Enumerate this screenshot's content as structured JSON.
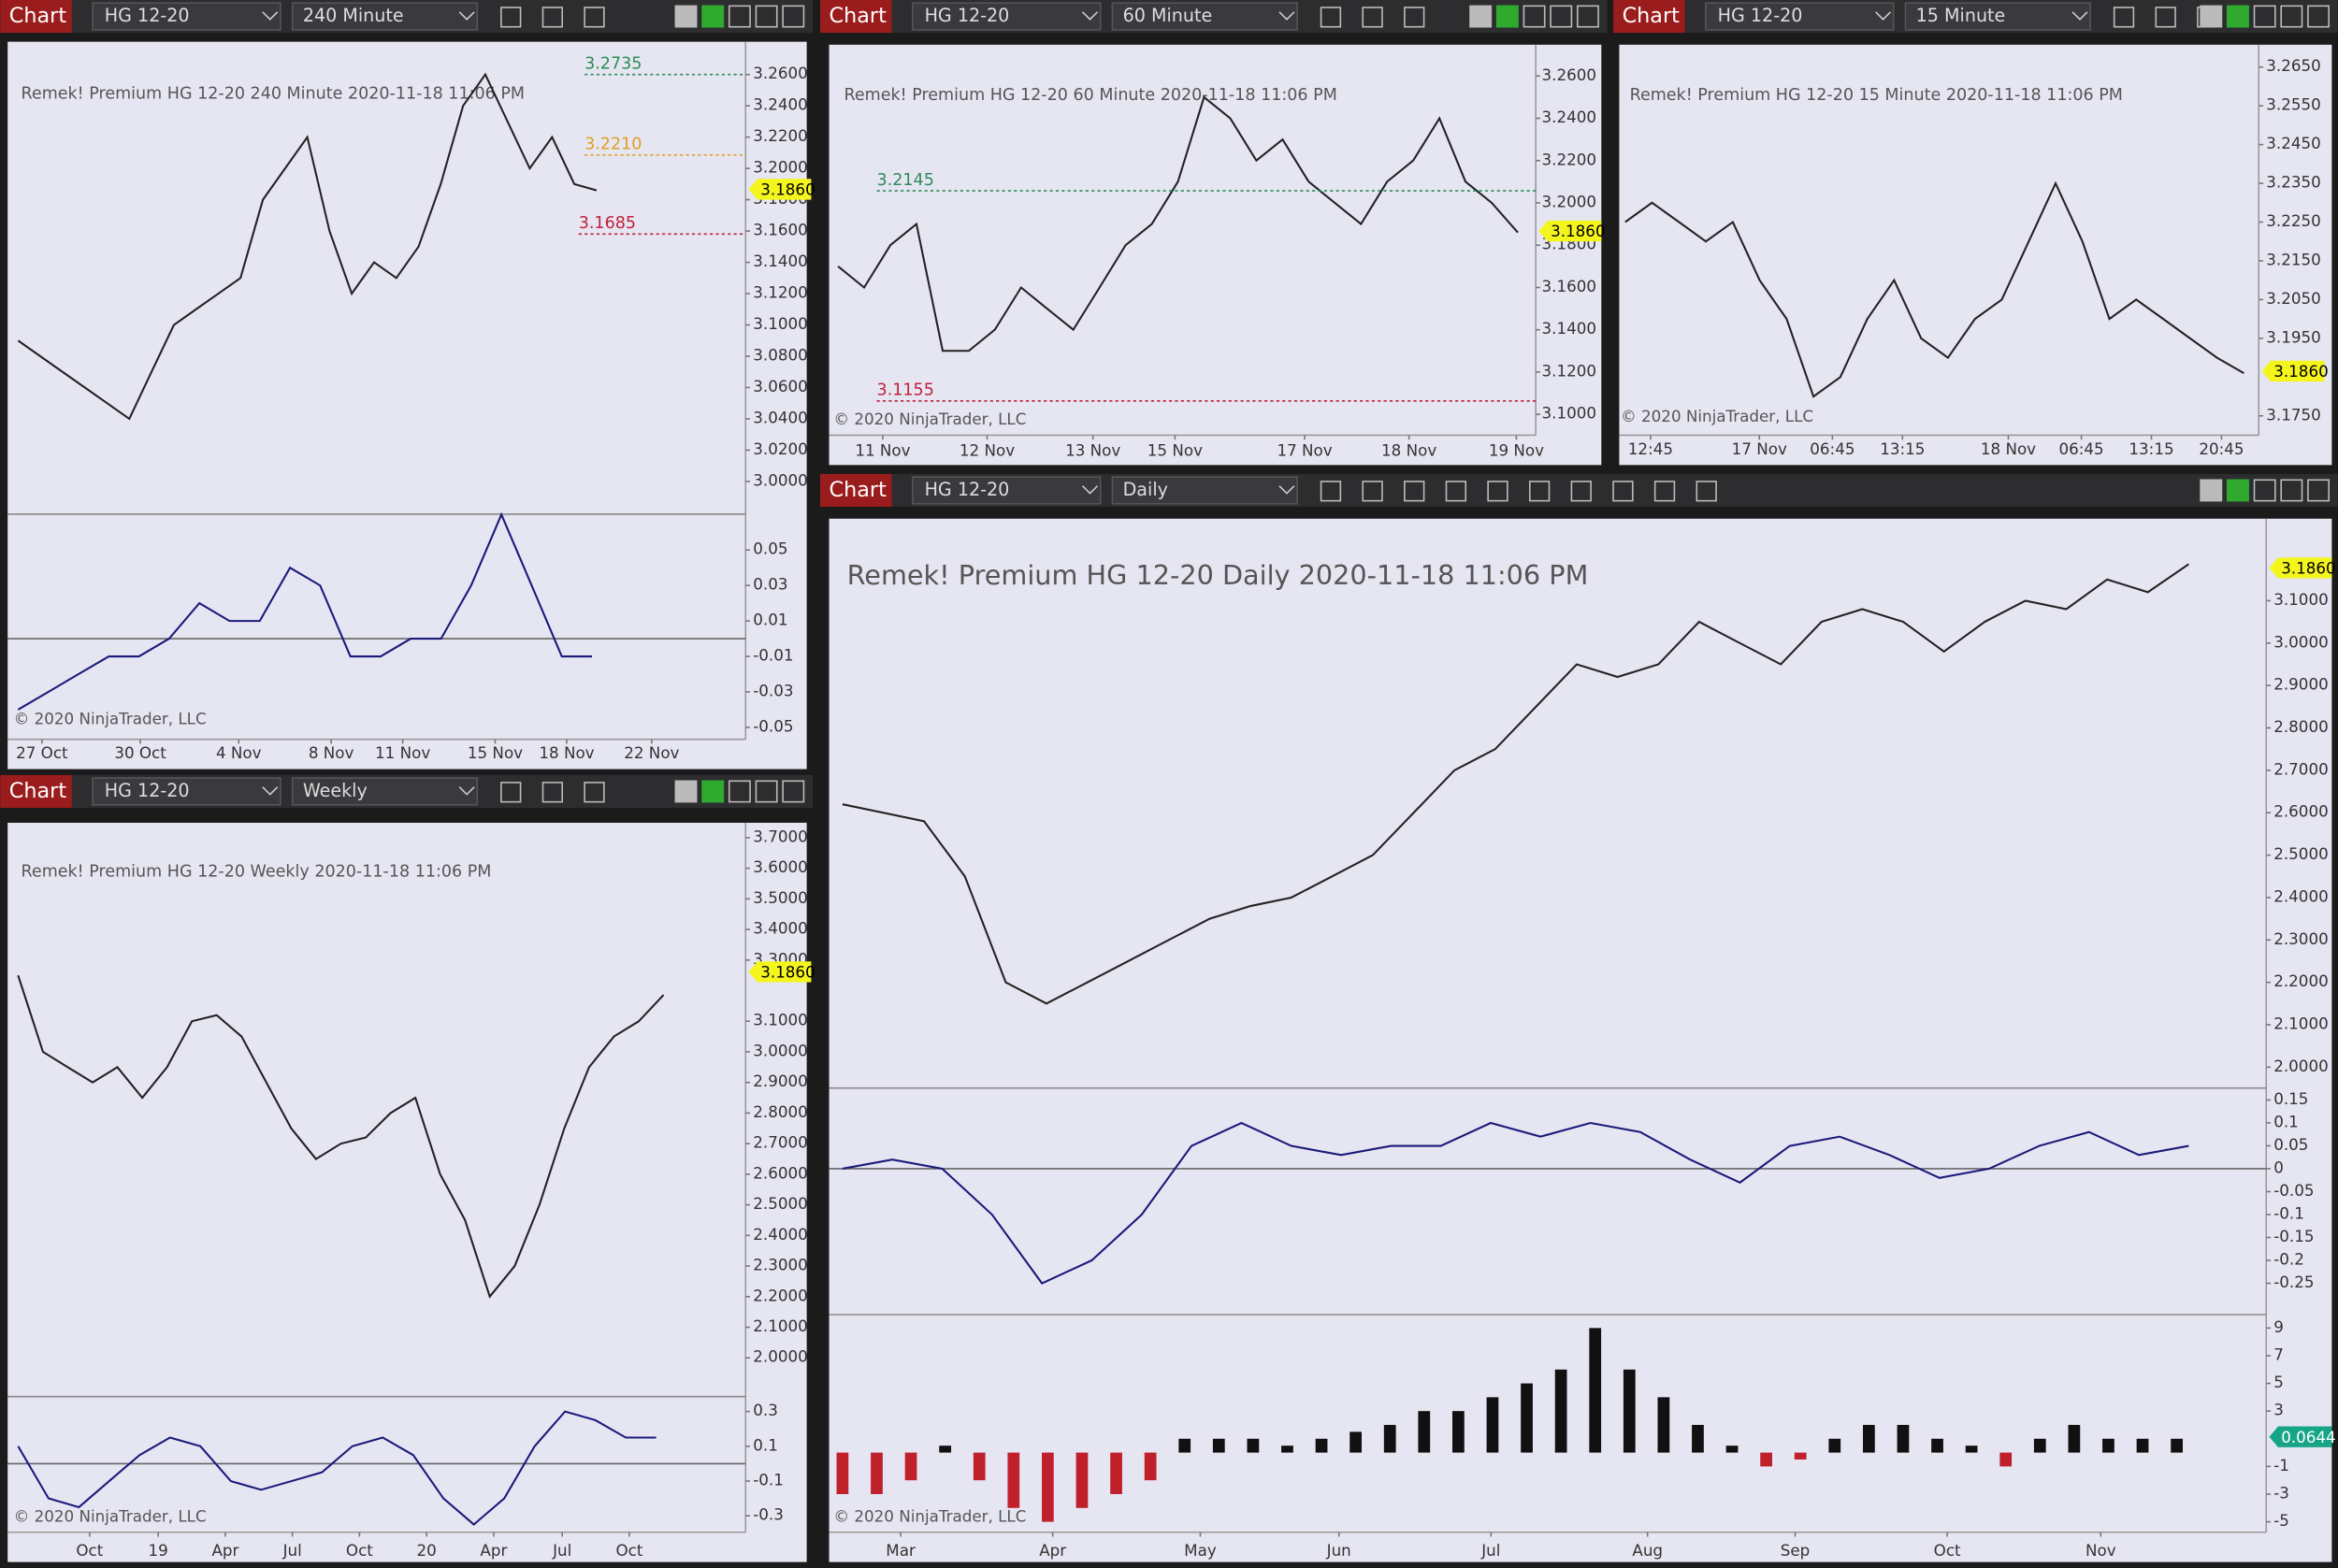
{
  "windows": [
    {
      "header": {
        "tab": "Chart",
        "instrument": "HG 12-20",
        "interval": "240 Minute"
      },
      "title": "Remek!  Premium  HG 12-20  240 Minute  2020-11-18 11:06 PM",
      "price_ticks": [
        "3.2600",
        "3.2400",
        "3.2200",
        "3.2000",
        "3.1800",
        "3.1600",
        "3.1400",
        "3.1200",
        "3.1000",
        "3.0800",
        "3.0600",
        "3.0400",
        "3.0200",
        "3.0000"
      ],
      "osc_ticks": [
        "0.05",
        "0.03",
        "0.01",
        "-0.01",
        "-0.03",
        "-0.05"
      ],
      "time_labels": [
        "27 Oct",
        "30 Oct",
        "4 Nov",
        "8 Nov",
        "11 Nov",
        "15 Nov",
        "18 Nov",
        "22 Nov"
      ],
      "annotations": [
        "3.2735",
        "3.2210",
        "3.1685"
      ],
      "last_price": "3.1860",
      "copyright": "© 2020 NinjaTrader, LLC",
      "prices": [
        3.09,
        3.08,
        3.07,
        3.06,
        3.05,
        3.04,
        3.07,
        3.1,
        3.11,
        3.12,
        3.13,
        3.18,
        3.2,
        3.22,
        3.16,
        3.12,
        3.14,
        3.13,
        3.15,
        3.19,
        3.24,
        3.26,
        3.23,
        3.2,
        3.22,
        3.19,
        3.186
      ],
      "oscillator": [
        -0.04,
        -0.03,
        -0.02,
        -0.01,
        -0.01,
        0.0,
        0.02,
        0.01,
        0.01,
        0.04,
        0.03,
        -0.01,
        -0.01,
        0.0,
        0.0,
        0.03,
        0.07,
        0.03,
        -0.01,
        -0.01
      ]
    },
    {
      "header": {
        "tab": "Chart",
        "instrument": "HG 12-20",
        "interval": "60 Minute"
      },
      "title": "Remek!  Premium  HG 12-20  60 Minute  2020-11-18 11:06 PM",
      "price_ticks": [
        "3.2600",
        "3.2400",
        "3.2200",
        "3.2000",
        "3.1800",
        "3.1600",
        "3.1400",
        "3.1200",
        "3.1000"
      ],
      "time_labels": [
        "11 Nov",
        "12 Nov",
        "13 Nov",
        "15 Nov",
        "17 Nov",
        "18 Nov",
        "19 Nov"
      ],
      "annotations": [
        "3.2145",
        "3.1155"
      ],
      "last_price": "3.1860",
      "copyright": "© 2020 NinjaTrader, LLC",
      "prices": [
        3.17,
        3.16,
        3.18,
        3.19,
        3.13,
        3.13,
        3.14,
        3.16,
        3.15,
        3.14,
        3.16,
        3.18,
        3.19,
        3.21,
        3.25,
        3.24,
        3.22,
        3.23,
        3.21,
        3.2,
        3.19,
        3.21,
        3.22,
        3.24,
        3.21,
        3.2,
        3.186
      ]
    },
    {
      "header": {
        "tab": "Chart",
        "instrument": "HG 12-20",
        "interval": "15 Minute"
      },
      "title": "Remek!  Premium  HG 12-20  15 Minute  2020-11-18 11:06 PM",
      "price_ticks": [
        "3.2650",
        "3.2550",
        "3.2450",
        "3.2350",
        "3.2250",
        "3.2150",
        "3.2050",
        "3.1950",
        "3.1750"
      ],
      "time_labels": [
        "12:45",
        "17 Nov",
        "06:45",
        "13:15",
        "18 Nov",
        "06:45",
        "13:15",
        "20:45"
      ],
      "last_price": "3.1860",
      "copyright": "© 2020 NinjaTrader, LLC",
      "prices": [
        3.225,
        3.23,
        3.225,
        3.22,
        3.225,
        3.21,
        3.2,
        3.18,
        3.185,
        3.2,
        3.21,
        3.195,
        3.19,
        3.2,
        3.205,
        3.22,
        3.235,
        3.22,
        3.2,
        3.205,
        3.2,
        3.195,
        3.19,
        3.186
      ]
    },
    {
      "header": {
        "tab": "Chart",
        "instrument": "HG 12-20",
        "interval": "Weekly"
      },
      "title": "Remek!  Premium  HG 12-20  Weekly  2020-11-18 11:06 PM",
      "price_ticks": [
        "3.7000",
        "3.6000",
        "3.5000",
        "3.4000",
        "3.3000",
        "3.1000",
        "3.0000",
        "2.9000",
        "2.8000",
        "2.7000",
        "2.6000",
        "2.5000",
        "2.4000",
        "2.3000",
        "2.2000",
        "2.1000",
        "2.0000"
      ],
      "osc_ticks": [
        "0.3",
        "0.1",
        "-0.1",
        "-0.3"
      ],
      "time_labels": [
        "Oct",
        "19",
        "Apr",
        "Jul",
        "Oct",
        "20",
        "Apr",
        "Jul",
        "Oct"
      ],
      "last_price": "3.1860",
      "copyright": "© 2020 NinjaTrader, LLC",
      "prices": [
        3.25,
        3.0,
        2.95,
        2.9,
        2.95,
        2.85,
        2.95,
        3.1,
        3.12,
        3.05,
        2.9,
        2.75,
        2.65,
        2.7,
        2.72,
        2.8,
        2.85,
        2.6,
        2.45,
        2.2,
        2.3,
        2.5,
        2.75,
        2.95,
        3.05,
        3.1,
        3.186
      ],
      "oscillator": [
        0.1,
        -0.2,
        -0.25,
        -0.1,
        0.05,
        0.15,
        0.1,
        -0.1,
        -0.15,
        -0.1,
        -0.05,
        0.1,
        0.15,
        0.05,
        -0.2,
        -0.35,
        -0.2,
        0.1,
        0.3,
        0.25,
        0.15,
        0.15
      ]
    },
    {
      "header": {
        "tab": "Chart",
        "instrument": "HG 12-20",
        "interval": "Daily"
      },
      "title": "Remek!  Premium  HG 12-20  Daily  2020-11-18 11:06 PM",
      "price_ticks": [
        "3.1000",
        "3.0000",
        "2.9000",
        "2.8000",
        "2.7000",
        "2.6000",
        "2.5000",
        "2.4000",
        "2.3000",
        "2.2000",
        "2.1000",
        "2.0000"
      ],
      "osc_ticks": [
        "0.15",
        "0.1",
        "0.05",
        "0",
        "-0.05",
        "-0.1",
        "-0.15",
        "-0.2",
        "-0.25"
      ],
      "hist_ticks": [
        "9",
        "7",
        "5",
        "3",
        "-1",
        "-3",
        "-5"
      ],
      "hist_last": "0.0644",
      "time_labels": [
        "Mar",
        "Apr",
        "May",
        "Jun",
        "Jul",
        "Aug",
        "Sep",
        "Oct",
        "Nov"
      ],
      "last_price": "3.1860",
      "copyright": "© 2020 NinjaTrader, LLC",
      "prices": [
        2.62,
        2.6,
        2.58,
        2.45,
        2.2,
        2.15,
        2.2,
        2.25,
        2.3,
        2.35,
        2.38,
        2.4,
        2.45,
        2.5,
        2.6,
        2.7,
        2.75,
        2.85,
        2.95,
        2.92,
        2.95,
        3.05,
        3.0,
        2.95,
        3.05,
        3.08,
        3.05,
        2.98,
        3.05,
        3.1,
        3.08,
        3.15,
        3.12,
        3.186
      ],
      "oscillator": [
        0.0,
        0.02,
        0.0,
        -0.1,
        -0.25,
        -0.2,
        -0.1,
        0.05,
        0.1,
        0.05,
        0.03,
        0.05,
        0.05,
        0.1,
        0.07,
        0.1,
        0.08,
        0.02,
        -0.03,
        0.05,
        0.07,
        0.03,
        -0.02,
        0.0,
        0.05,
        0.08,
        0.03,
        0.05
      ],
      "histogram": [
        -3,
        -3,
        -2,
        0.5,
        -2,
        -4,
        -5,
        -4,
        -3,
        -2,
        1,
        1,
        1,
        0.5,
        1,
        1.5,
        2,
        3,
        3,
        4,
        5,
        6,
        9,
        6,
        4,
        2,
        0.5,
        -1,
        -0.5,
        1,
        2,
        2,
        1,
        0.5,
        -1,
        1,
        2,
        1,
        1,
        1
      ]
    }
  ]
}
